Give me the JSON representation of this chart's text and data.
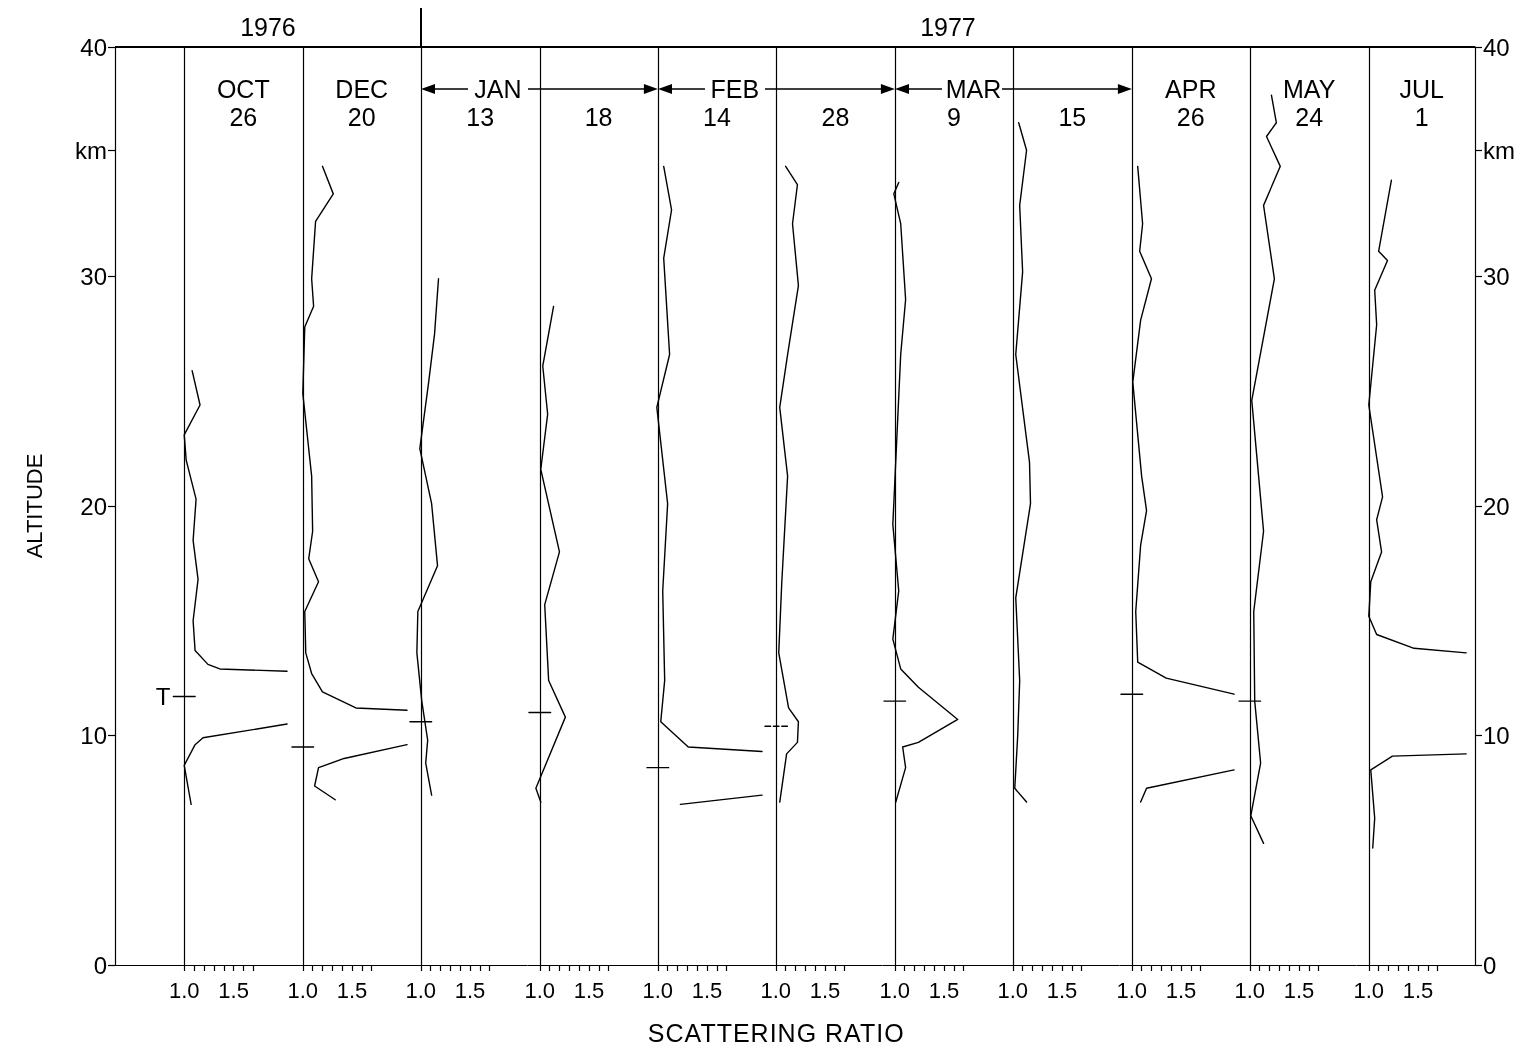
{
  "chart_data": [
    {
      "type": "line",
      "title": "26",
      "subtitle": "OCT",
      "annotations": [
        "1976",
        {
          "text": "T",
          "x": 0.89,
          "y": 11.7
        }
      ],
      "ylabel": "ALTITUDE",
      "xlim": [
        0.3,
        2.08
      ],
      "ylim": [
        0,
        40
      ],
      "xticks": [
        {
          "value": 1,
          "label": "1.0"
        },
        {
          "value": 1.1,
          "label": null
        },
        {
          "value": 1.2,
          "label": null
        },
        {
          "value": 1.3,
          "label": null
        },
        {
          "value": 1.4,
          "label": null
        },
        {
          "value": 1.5,
          "label": "1.5"
        },
        {
          "value": 1.6,
          "label": null
        },
        {
          "value": 1.7,
          "label": null
        }
      ],
      "yticks": [
        0,
        10,
        20,
        30,
        {
          "value": 35.5,
          "label": "km"
        },
        40
      ],
      "ref_lines": [
        {
          "axis": "x",
          "value": 1
        }
      ],
      "grid": false,
      "series": [
        {
          "color": "#000000",
          "x": [
            1.08,
            1.16,
            1.0,
            1.02,
            1.12,
            1.09,
            1.14,
            1.09,
            1.11,
            1.24,
            1.36,
            2.04,
            null,
            2.04,
            1.19,
            1.11,
            1.0,
            1.07
          ],
          "values": [
            25.9,
            24.4,
            23.1,
            22.0,
            20.3,
            18.5,
            16.8,
            15.0,
            13.7,
            13.1,
            12.9,
            12.8,
            null,
            10.5,
            9.9,
            9.6,
            8.7,
            7.0
          ]
        },
        {
          "color": "#000000",
          "x": [
            0.89,
            1.11
          ],
          "values": [
            11.7,
            11.7
          ]
        }
      ]
    },
    {
      "type": "line",
      "title": "20",
      "subtitle": "DEC",
      "xlim": [
        0.88,
        2.08
      ],
      "ylim": [
        0,
        40
      ],
      "tick_labels": "x",
      "xticks": [
        {
          "value": 1,
          "label": "1.0"
        },
        {
          "value": 1.1,
          "label": null
        },
        {
          "value": 1.2,
          "label": null
        },
        {
          "value": 1.3,
          "label": null
        },
        {
          "value": 1.4,
          "label": null
        },
        {
          "value": 1.5,
          "label": "1.5"
        },
        {
          "value": 1.6,
          "label": null
        },
        {
          "value": 1.7,
          "label": null
        }
      ],
      "ref_lines": [
        {
          "axis": "x",
          "value": 1
        }
      ],
      "grid": false,
      "series": [
        {
          "color": "#000000",
          "x": [
            1.2,
            1.31,
            1.13,
            1.09,
            1.11,
            1.02,
            1.0,
            1.09,
            1.1,
            1.06,
            1.16,
            1.02,
            1.03,
            1.09,
            1.2,
            1.54,
            2.06,
            null,
            2.06,
            1.42,
            1.16,
            1.12,
            1.33
          ],
          "values": [
            34.8,
            33.6,
            32.4,
            29.9,
            28.7,
            27.8,
            24.9,
            21.3,
            18.9,
            17.7,
            16.7,
            15.4,
            13.6,
            12.7,
            11.9,
            11.2,
            11.1,
            null,
            9.6,
            9.0,
            8.6,
            7.8,
            7.2
          ]
        },
        {
          "color": "#000000",
          "x": [
            0.89,
            1.11
          ],
          "values": [
            9.5,
            9.5
          ]
        }
      ]
    },
    {
      "type": "line",
      "title": "13",
      "subtitle": "JAN",
      "annotations": [
        "1977"
      ],
      "xlim": [
        0.88,
        2.08
      ],
      "ylim": [
        0,
        40
      ],
      "tick_labels": "x",
      "xticks": [
        {
          "value": 1,
          "label": "1.0"
        },
        {
          "value": 1.1,
          "label": null
        },
        {
          "value": 1.2,
          "label": null
        },
        {
          "value": 1.3,
          "label": null
        },
        {
          "value": 1.4,
          "label": null
        },
        {
          "value": 1.5,
          "label": "1.5"
        },
        {
          "value": 1.6,
          "label": null
        },
        {
          "value": 1.7,
          "label": null
        }
      ],
      "ref_lines": [
        {
          "axis": "x",
          "value": 1
        }
      ],
      "grid": false,
      "series": [
        {
          "color": "#000000",
          "x": [
            1.18,
            1.14,
            1.08,
            0.99,
            1.11,
            1.17,
            0.97,
            0.96,
            1.01,
            1.07,
            1.05,
            1.11
          ],
          "values": [
            29.9,
            27.5,
            25.4,
            22.5,
            20.1,
            17.4,
            15.4,
            13.6,
            11.5,
            9.8,
            8.8,
            7.4
          ]
        },
        {
          "color": "#000000",
          "x": [
            0.89,
            1.11
          ],
          "values": [
            10.6,
            10.6
          ]
        }
      ]
    },
    {
      "type": "line",
      "title": "18",
      "xlim": [
        0.88,
        2.08
      ],
      "ylim": [
        0,
        40
      ],
      "tick_labels": "x",
      "xticks": [
        {
          "value": 1,
          "label": "1.0"
        },
        {
          "value": 1.1,
          "label": null
        },
        {
          "value": 1.2,
          "label": null
        },
        {
          "value": 1.3,
          "label": null
        },
        {
          "value": 1.4,
          "label": null
        },
        {
          "value": 1.5,
          "label": "1.5"
        },
        {
          "value": 1.6,
          "label": null
        },
        {
          "value": 1.7,
          "label": null
        }
      ],
      "ref_lines": [
        {
          "axis": "x",
          "value": 1
        }
      ],
      "grid": false,
      "series": [
        {
          "color": "#000000",
          "x": [
            1.14,
            1.03,
            1.08,
            1.01,
            1.2,
            1.05,
            1.09,
            1.26,
            0.96,
            1.01
          ],
          "values": [
            28.7,
            26.1,
            24.0,
            21.6,
            18.0,
            15.7,
            12.4,
            10.8,
            7.7,
            7.1
          ]
        },
        {
          "color": "#000000",
          "x": [
            0.89,
            1.11
          ],
          "values": [
            11.0,
            11.0
          ]
        }
      ]
    },
    {
      "type": "line",
      "title": "14",
      "subtitle": "FEB",
      "xlim": [
        0.88,
        2.08
      ],
      "ylim": [
        0,
        40
      ],
      "tick_labels": "x",
      "xticks": [
        {
          "value": 1,
          "label": "1.0"
        },
        {
          "value": 1.1,
          "label": null
        },
        {
          "value": 1.2,
          "label": null
        },
        {
          "value": 1.3,
          "label": null
        },
        {
          "value": 1.4,
          "label": null
        },
        {
          "value": 1.5,
          "label": "1.5"
        },
        {
          "value": 1.6,
          "label": null
        },
        {
          "value": 1.7,
          "label": null
        }
      ],
      "ref_lines": [
        {
          "axis": "x",
          "value": 1
        }
      ],
      "grid": false,
      "series": [
        {
          "color": "#000000",
          "x": [
            1.06,
            1.14,
            1.06,
            1.12,
            0.99,
            1.1,
            1.05,
            1.07,
            1.03,
            1.31,
            2.06,
            null,
            2.06,
            1.23
          ],
          "values": [
            34.8,
            32.9,
            30.8,
            26.6,
            24.3,
            20.1,
            16.3,
            12.4,
            10.6,
            9.5,
            9.3,
            null,
            7.4,
            7.0
          ]
        },
        {
          "color": "#000000",
          "x": [
            0.89,
            1.11
          ],
          "values": [
            8.6,
            8.6
          ]
        }
      ]
    },
    {
      "type": "line",
      "title": "28",
      "xlabel": "SCATTERING RATIO",
      "xlim": [
        0.88,
        2.08
      ],
      "ylim": [
        0,
        40
      ],
      "tick_labels": "x",
      "xticks": [
        {
          "value": 1,
          "label": "1.0"
        },
        {
          "value": 1.1,
          "label": null
        },
        {
          "value": 1.2,
          "label": null
        },
        {
          "value": 1.3,
          "label": null
        },
        {
          "value": 1.4,
          "label": null
        },
        {
          "value": 1.5,
          "label": "1.5"
        },
        {
          "value": 1.6,
          "label": null
        },
        {
          "value": 1.7,
          "label": null
        }
      ],
      "ref_lines": [
        {
          "axis": "x",
          "value": 1
        }
      ],
      "grid": false,
      "series": [
        {
          "color": "#000000",
          "x": [
            1.1,
            1.22,
            1.17,
            1.23,
            1.12,
            1.04,
            1.12,
            1.06,
            1.03,
            1.13,
            1.23,
            1.22,
            1.11,
            1.04
          ],
          "values": [
            34.8,
            34.0,
            32.3,
            29.6,
            26.6,
            24.3,
            21.3,
            16.6,
            13.6,
            11.2,
            10.6,
            9.7,
            9.2,
            7.1
          ]
        },
        {
          "color": "#000000",
          "line_style": "dashed",
          "x": [
            0.89,
            1.12
          ],
          "values": [
            10.4,
            10.4
          ]
        }
      ]
    },
    {
      "type": "line",
      "title": "9",
      "subtitle": "MAR",
      "xlim": [
        0.88,
        2.08
      ],
      "ylim": [
        0,
        40
      ],
      "tick_labels": "x",
      "xticks": [
        {
          "value": 1,
          "label": "1.0"
        },
        {
          "value": 1.1,
          "label": null
        },
        {
          "value": 1.2,
          "label": null
        },
        {
          "value": 1.3,
          "label": null
        },
        {
          "value": 1.4,
          "label": null
        },
        {
          "value": 1.5,
          "label": "1.5"
        },
        {
          "value": 1.6,
          "label": null
        },
        {
          "value": 1.7,
          "label": null
        }
      ],
      "ref_lines": [
        {
          "axis": "x",
          "value": 1
        }
      ],
      "grid": false,
      "series": [
        {
          "color": "#000000",
          "x": [
            1.04,
            0.99,
            1.06,
            1.11,
            1.06,
            0.98,
            1.04,
            0.98,
            1.06,
            1.24,
            1.64,
            1.24,
            1.08,
            1.11,
            1.01
          ],
          "values": [
            34.1,
            33.6,
            32.3,
            29.0,
            26.6,
            19.2,
            16.3,
            14.2,
            12.9,
            12.1,
            10.7,
            9.7,
            9.5,
            8.6,
            7.1
          ]
        },
        {
          "color": "#000000",
          "x": [
            0.89,
            1.11
          ],
          "values": [
            11.5,
            11.5
          ]
        }
      ]
    },
    {
      "type": "line",
      "title": "15",
      "xlim": [
        0.88,
        2.08
      ],
      "ylim": [
        0,
        40
      ],
      "tick_labels": "x",
      "xticks": [
        {
          "value": 1,
          "label": "1.0"
        },
        {
          "value": 1.1,
          "label": null
        },
        {
          "value": 1.2,
          "label": null
        },
        {
          "value": 1.3,
          "label": null
        },
        {
          "value": 1.4,
          "label": null
        },
        {
          "value": 1.5,
          "label": "1.5"
        },
        {
          "value": 1.6,
          "label": null
        },
        {
          "value": 1.7,
          "label": null
        }
      ],
      "ref_lines": [
        {
          "axis": "x",
          "value": 1
        }
      ],
      "grid": false,
      "series": [
        {
          "color": "#000000",
          "x": [
            1.06,
            1.14,
            1.07,
            1.1,
            1.03,
            1.17,
            1.18,
            1.03,
            1.07,
            1.05,
            1.02,
            1.14
          ],
          "values": [
            36.7,
            35.5,
            33.1,
            30.2,
            26.6,
            21.9,
            20.1,
            16.0,
            12.4,
            10.0,
            7.7,
            7.1
          ]
        }
      ]
    },
    {
      "type": "line",
      "title": "26",
      "subtitle": "APR",
      "xlim": [
        0.88,
        2.08
      ],
      "ylim": [
        0,
        40
      ],
      "tick_labels": "x",
      "xticks": [
        {
          "value": 1,
          "label": "1.0"
        },
        {
          "value": 1.1,
          "label": null
        },
        {
          "value": 1.2,
          "label": null
        },
        {
          "value": 1.3,
          "label": null
        },
        {
          "value": 1.4,
          "label": null
        },
        {
          "value": 1.5,
          "label": "1.5"
        },
        {
          "value": 1.6,
          "label": null
        },
        {
          "value": 1.7,
          "label": null
        }
      ],
      "ref_lines": [
        {
          "axis": "x",
          "value": 1
        }
      ],
      "grid": false,
      "series": [
        {
          "color": "#000000",
          "x": [
            1.06,
            1.11,
            1.08,
            1.2,
            1.09,
            1.01,
            1.1,
            1.15,
            1.09,
            1.04,
            1.06,
            1.35,
            2.04,
            null,
            2.04,
            1.15,
            1.09
          ],
          "values": [
            34.8,
            32.3,
            31.1,
            29.9,
            28.1,
            25.4,
            21.3,
            19.8,
            18.3,
            15.4,
            13.2,
            12.5,
            11.8,
            null,
            8.5,
            7.7,
            7.1
          ]
        },
        {
          "color": "#000000",
          "x": [
            0.89,
            1.11
          ],
          "values": [
            11.8,
            11.8
          ]
        }
      ]
    },
    {
      "type": "line",
      "title": "24",
      "subtitle": "MAY",
      "xlim": [
        0.88,
        2.08
      ],
      "ylim": [
        0,
        40
      ],
      "tick_labels": "x",
      "xticks": [
        {
          "value": 1,
          "label": "1.0"
        },
        {
          "value": 1.1,
          "label": null
        },
        {
          "value": 1.2,
          "label": null
        },
        {
          "value": 1.3,
          "label": null
        },
        {
          "value": 1.4,
          "label": null
        },
        {
          "value": 1.5,
          "label": "1.5"
        },
        {
          "value": 1.6,
          "label": null
        },
        {
          "value": 1.7,
          "label": null
        }
      ],
      "ref_lines": [
        {
          "axis": "x",
          "value": 1
        }
      ],
      "grid": false,
      "series": [
        {
          "color": "#000000",
          "x": [
            1.22,
            1.27,
            1.17,
            1.31,
            1.14,
            1.25,
            1.02,
            1.14,
            1.04,
            1.05,
            1.11,
            1.01,
            1.14
          ],
          "values": [
            37.9,
            36.7,
            36.1,
            34.8,
            33.1,
            29.9,
            24.6,
            18.9,
            15.4,
            11.5,
            8.8,
            6.5,
            5.3
          ]
        },
        {
          "color": "#000000",
          "x": [
            0.89,
            1.11
          ],
          "values": [
            11.5,
            11.5
          ]
        }
      ]
    },
    {
      "type": "line",
      "title": "1",
      "subtitle": "JUL",
      "xlim": [
        0.88,
        2.08
      ],
      "y2lim": [
        0,
        40
      ],
      "y2ticks": [
        0,
        10,
        20,
        30,
        {
          "value": 35.5,
          "label": "km"
        },
        40
      ],
      "xticks": [
        {
          "value": 1,
          "label": "1.0"
        },
        {
          "value": 1.1,
          "label": null
        },
        {
          "value": 1.2,
          "label": null
        },
        {
          "value": 1.3,
          "label": null
        },
        {
          "value": 1.4,
          "label": null
        },
        {
          "value": 1.5,
          "label": "1.5"
        },
        {
          "value": 1.6,
          "label": null
        },
        {
          "value": 1.7,
          "label": null
        }
      ],
      "ref_lines": [
        {
          "axis": "x",
          "value": 1
        }
      ],
      "grid": false,
      "series": [
        {
          "color": "#000000",
          "axis": "y2",
          "x": [
            1.23,
            1.1,
            1.19,
            1.06,
            1.08,
            1.0,
            1.14,
            1.08,
            1.13,
            1.02,
            1.0,
            1.08,
            1.46,
            1.99,
            null,
            1.99,
            1.24,
            1.02,
            1.06,
            1.04
          ],
          "values": [
            34.2,
            31.1,
            30.7,
            29.4,
            27.9,
            24.4,
            20.4,
            19.4,
            18.0,
            16.7,
            15.2,
            14.4,
            13.8,
            13.6,
            null,
            9.2,
            9.1,
            8.5,
            6.4,
            5.1
          ]
        }
      ]
    }
  ]
}
